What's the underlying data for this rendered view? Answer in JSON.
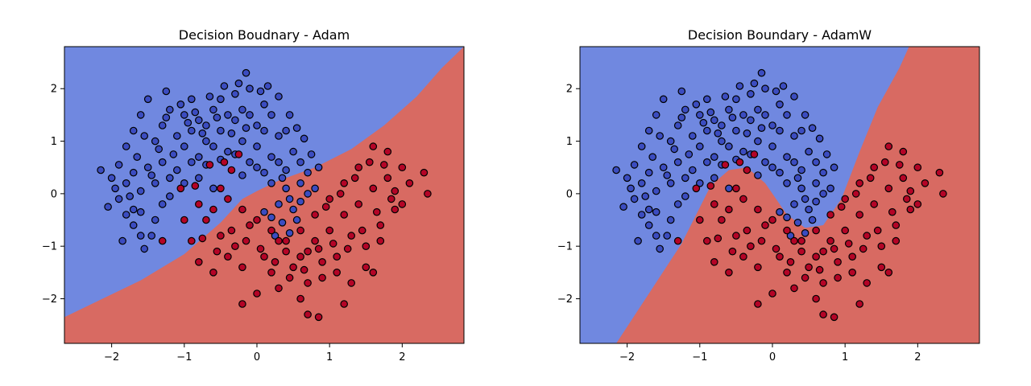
{
  "chart_data": [
    {
      "type": "scatter",
      "title": "Decision Boudnary - Adam",
      "xlabel": "",
      "ylabel": "",
      "xlim": [
        -2.65,
        2.85
      ],
      "ylim": [
        -2.85,
        2.8
      ],
      "xticks": [
        "−2",
        "−1",
        "0",
        "1",
        "2"
      ],
      "xtick_values": [
        -2,
        -1,
        0,
        1,
        2
      ],
      "yticks": [
        "−2",
        "−1",
        "0",
        "1",
        "2"
      ],
      "ytick_values": [
        -2,
        -1,
        0,
        1,
        2
      ],
      "grid": false,
      "colors": {
        "class0_region": "#7088E0",
        "class1_region": "#D86A62",
        "class0_point": "#3B4CC0",
        "class1_point": "#B40426",
        "edge": "#000000"
      },
      "decision_boundary": [
        [
          -2.65,
          -2.35
        ],
        [
          -2.2,
          -2.05
        ],
        [
          -1.6,
          -1.65
        ],
        [
          -1.0,
          -1.15
        ],
        [
          -0.5,
          -0.55
        ],
        [
          -0.2,
          -0.1
        ],
        [
          0.0,
          0.05
        ],
        [
          0.3,
          0.25
        ],
        [
          0.8,
          0.5
        ],
        [
          1.3,
          0.85
        ],
        [
          1.75,
          1.3
        ],
        [
          2.2,
          1.85
        ],
        [
          2.55,
          2.4
        ],
        [
          2.85,
          2.8
        ]
      ]
    },
    {
      "type": "scatter",
      "title": "Decision Boundary - AdamW",
      "xlabel": "",
      "ylabel": "",
      "xlim": [
        -2.65,
        2.85
      ],
      "ylim": [
        -2.85,
        2.8
      ],
      "xticks": [
        "−2",
        "−1",
        "0",
        "1",
        "2"
      ],
      "xtick_values": [
        -2,
        -1,
        0,
        1,
        2
      ],
      "yticks": [
        "−2",
        "−1",
        "0",
        "1",
        "2"
      ],
      "ytick_values": [
        -2,
        -1,
        0,
        1,
        2
      ],
      "grid": false,
      "colors": {
        "class0_region": "#7088E0",
        "class1_region": "#D86A62",
        "class0_point": "#3B4CC0",
        "class1_point": "#B40426",
        "edge": "#000000"
      },
      "decision_boundary": [
        [
          -2.15,
          -2.85
        ],
        [
          -1.7,
          -1.9
        ],
        [
          -1.25,
          -0.95
        ],
        [
          -0.85,
          0.15
        ],
        [
          -0.6,
          0.45
        ],
        [
          -0.35,
          0.5
        ],
        [
          -0.1,
          0.2
        ],
        [
          0.2,
          -0.4
        ],
        [
          0.45,
          -0.65
        ],
        [
          0.7,
          -0.6
        ],
        [
          0.95,
          -0.1
        ],
        [
          1.2,
          0.8
        ],
        [
          1.45,
          1.65
        ],
        [
          1.75,
          2.4
        ],
        [
          1.88,
          2.8
        ]
      ]
    }
  ],
  "scatter_points": {
    "class0": [
      [
        -2.15,
        0.45
      ],
      [
        -2.0,
        0.3
      ],
      [
        -1.9,
        0.55
      ],
      [
        -1.8,
        0.2
      ],
      [
        -1.7,
        0.4
      ],
      [
        -1.6,
        0.05
      ],
      [
        -1.5,
        0.5
      ],
      [
        -1.4,
        0.2
      ],
      [
        -1.3,
        0.6
      ],
      [
        -1.2,
        0.3
      ],
      [
        -1.1,
        0.45
      ],
      [
        -1.0,
        0.9
      ],
      [
        -0.9,
        1.2
      ],
      [
        -0.8,
        1.4
      ],
      [
        -0.7,
        1.0
      ],
      [
        -0.6,
        1.6
      ],
      [
        -0.5,
        1.8
      ],
      [
        -0.4,
        1.5
      ],
      [
        -0.3,
        1.9
      ],
      [
        -0.2,
        1.6
      ],
      [
        -0.1,
        2.0
      ],
      [
        0.0,
        1.3
      ],
      [
        0.1,
        1.7
      ],
      [
        0.2,
        1.5
      ],
      [
        0.3,
        1.1
      ],
      [
        0.4,
        1.2
      ],
      [
        0.5,
        0.8
      ],
      [
        0.6,
        0.6
      ],
      [
        0.7,
        0.4
      ],
      [
        0.8,
        0.1
      ],
      [
        -1.8,
        0.9
      ],
      [
        -1.7,
        1.2
      ],
      [
        -1.6,
        1.5
      ],
      [
        -1.5,
        1.8
      ],
      [
        -1.4,
        1.0
      ],
      [
        -1.3,
        1.3
      ],
      [
        -1.2,
        1.6
      ],
      [
        -1.1,
        1.1
      ],
      [
        -1.0,
        1.5
      ],
      [
        -0.9,
        1.8
      ],
      [
        -0.8,
        0.7
      ],
      [
        -0.7,
        1.3
      ],
      [
        -0.6,
        0.9
      ],
      [
        -0.5,
        1.2
      ],
      [
        -0.4,
        0.8
      ],
      [
        -0.3,
        1.4
      ],
      [
        -0.2,
        1.0
      ],
      [
        -0.1,
        1.5
      ],
      [
        0.0,
        0.9
      ],
      [
        0.1,
        1.2
      ],
      [
        0.2,
        0.7
      ],
      [
        0.3,
        0.6
      ],
      [
        0.35,
        0.3
      ],
      [
        0.4,
        0.1
      ],
      [
        0.45,
        -0.1
      ],
      [
        0.5,
        -0.3
      ],
      [
        0.3,
        -0.2
      ],
      [
        0.2,
        -0.45
      ],
      [
        0.1,
        -0.35
      ],
      [
        0.35,
        -0.55
      ],
      [
        -1.9,
        -0.1
      ],
      [
        -1.8,
        -0.4
      ],
      [
        -1.7,
        -0.6
      ],
      [
        -1.6,
        -0.8
      ],
      [
        -1.55,
        -1.05
      ],
      [
        -1.85,
        -0.9
      ],
      [
        -1.7,
        -0.3
      ],
      [
        -1.4,
        -0.5
      ],
      [
        -1.3,
        -0.2
      ],
      [
        -1.45,
        -0.8
      ],
      [
        -1.6,
        -0.35
      ],
      [
        -1.2,
        -0.05
      ],
      [
        -1.35,
        0.85
      ],
      [
        -1.55,
        1.1
      ],
      [
        -1.25,
        1.95
      ],
      [
        -1.05,
        1.7
      ],
      [
        -0.85,
        1.55
      ],
      [
        -0.65,
        1.85
      ],
      [
        -0.45,
        2.05
      ],
      [
        -0.25,
        2.1
      ],
      [
        0.05,
        1.95
      ],
      [
        0.15,
        2.05
      ],
      [
        -0.15,
        2.3
      ],
      [
        0.3,
        1.85
      ],
      [
        0.45,
        1.5
      ],
      [
        0.55,
        1.25
      ],
      [
        0.65,
        1.05
      ],
      [
        0.75,
        0.75
      ],
      [
        0.85,
        0.5
      ],
      [
        0.6,
        0.2
      ],
      [
        -1.0,
        0.2
      ],
      [
        -0.8,
        0.3
      ],
      [
        -0.6,
        0.1
      ],
      [
        -0.9,
        0.6
      ],
      [
        -0.7,
        0.55
      ],
      [
        -0.5,
        0.65
      ],
      [
        -0.3,
        0.75
      ],
      [
        -0.1,
        0.6
      ],
      [
        0.1,
        0.4
      ],
      [
        0.2,
        0.2
      ],
      [
        0.0,
        0.5
      ],
      [
        -0.2,
        0.35
      ],
      [
        0.55,
        -0.5
      ],
      [
        0.45,
        -0.75
      ],
      [
        0.25,
        -0.8
      ],
      [
        0.6,
        -0.15
      ],
      [
        0.7,
        0.0
      ],
      [
        0.4,
        0.45
      ],
      [
        -1.65,
        0.7
      ],
      [
        -1.95,
        0.1
      ],
      [
        -2.05,
        -0.25
      ],
      [
        -1.75,
        -0.05
      ],
      [
        -1.45,
        0.35
      ],
      [
        -1.15,
        0.75
      ],
      [
        -1.25,
        1.45
      ],
      [
        -0.95,
        1.35
      ],
      [
        -0.75,
        1.15
      ],
      [
        -0.55,
        1.45
      ],
      [
        -0.35,
        1.15
      ],
      [
        -0.15,
        1.25
      ]
    ],
    "class1": [
      [
        -0.9,
        -0.9
      ],
      [
        -0.7,
        -0.5
      ],
      [
        -0.5,
        -0.8
      ],
      [
        -0.3,
        -1.0
      ],
      [
        -0.1,
        -0.6
      ],
      [
        0.1,
        -1.2
      ],
      [
        0.3,
        -0.9
      ],
      [
        0.5,
        -1.4
      ],
      [
        0.7,
        -1.1
      ],
      [
        0.9,
        -1.6
      ],
      [
        1.1,
        -1.2
      ],
      [
        1.3,
        -0.8
      ],
      [
        1.5,
        -1.0
      ],
      [
        1.7,
        -0.6
      ],
      [
        1.9,
        -0.3
      ],
      [
        2.1,
        0.2
      ],
      [
        2.3,
        0.4
      ],
      [
        2.35,
        0.0
      ],
      [
        1.8,
        0.8
      ],
      [
        1.6,
        0.9
      ],
      [
        1.4,
        0.5
      ],
      [
        1.2,
        0.2
      ],
      [
        1.0,
        -0.1
      ],
      [
        0.8,
        -0.4
      ],
      [
        0.6,
        -0.7
      ],
      [
        0.4,
        -1.1
      ],
      [
        0.2,
        -1.5
      ],
      [
        0.0,
        -1.9
      ],
      [
        -0.2,
        -2.1
      ],
      [
        0.7,
        -2.3
      ],
      [
        0.85,
        -2.35
      ],
      [
        1.2,
        -2.1
      ],
      [
        0.6,
        -2.0
      ],
      [
        0.3,
        -1.8
      ],
      [
        -0.2,
        -1.4
      ],
      [
        -0.4,
        -1.2
      ],
      [
        -0.6,
        -1.5
      ],
      [
        -0.8,
        -1.3
      ],
      [
        -1.0,
        -0.5
      ],
      [
        -0.8,
        -0.2
      ],
      [
        -0.6,
        -0.3
      ],
      [
        -0.4,
        -0.1
      ],
      [
        -0.2,
        -0.3
      ],
      [
        0.0,
        -0.5
      ],
      [
        0.2,
        -0.7
      ],
      [
        0.4,
        -0.9
      ],
      [
        0.6,
        -1.2
      ],
      [
        0.8,
        -0.9
      ],
      [
        1.0,
        -0.7
      ],
      [
        1.2,
        -0.4
      ],
      [
        1.4,
        -0.2
      ],
      [
        1.6,
        0.1
      ],
      [
        1.8,
        0.3
      ],
      [
        2.0,
        0.5
      ],
      [
        1.7,
        -0.9
      ],
      [
        1.5,
        -1.4
      ],
      [
        1.3,
        -1.7
      ],
      [
        1.1,
        -1.5
      ],
      [
        0.9,
        -1.3
      ],
      [
        0.7,
        -1.7
      ],
      [
        -0.5,
        0.1
      ],
      [
        -0.35,
        0.45
      ],
      [
        -0.25,
        0.75
      ],
      [
        -0.45,
        0.6
      ],
      [
        -0.65,
        0.55
      ],
      [
        -0.85,
        0.15
      ],
      [
        -1.05,
        0.1
      ],
      [
        -1.3,
        -0.9
      ],
      [
        -0.75,
        -0.85
      ],
      [
        -0.55,
        -1.1
      ],
      [
        -0.35,
        -0.7
      ],
      [
        -0.15,
        -0.9
      ],
      [
        0.05,
        -1.05
      ],
      [
        0.25,
        -1.3
      ],
      [
        0.45,
        -1.6
      ],
      [
        0.65,
        -1.45
      ],
      [
        0.85,
        -1.05
      ],
      [
        1.05,
        -0.95
      ],
      [
        1.25,
        -1.05
      ],
      [
        1.45,
        -0.7
      ],
      [
        1.65,
        -0.35
      ],
      [
        1.85,
        -0.1
      ],
      [
        1.75,
        0.55
      ],
      [
        1.55,
        0.6
      ],
      [
        1.35,
        0.3
      ],
      [
        1.15,
        0.0
      ],
      [
        0.95,
        -0.25
      ],
      [
        1.9,
        0.05
      ],
      [
        2.0,
        -0.2
      ],
      [
        1.6,
        -1.5
      ]
    ]
  }
}
